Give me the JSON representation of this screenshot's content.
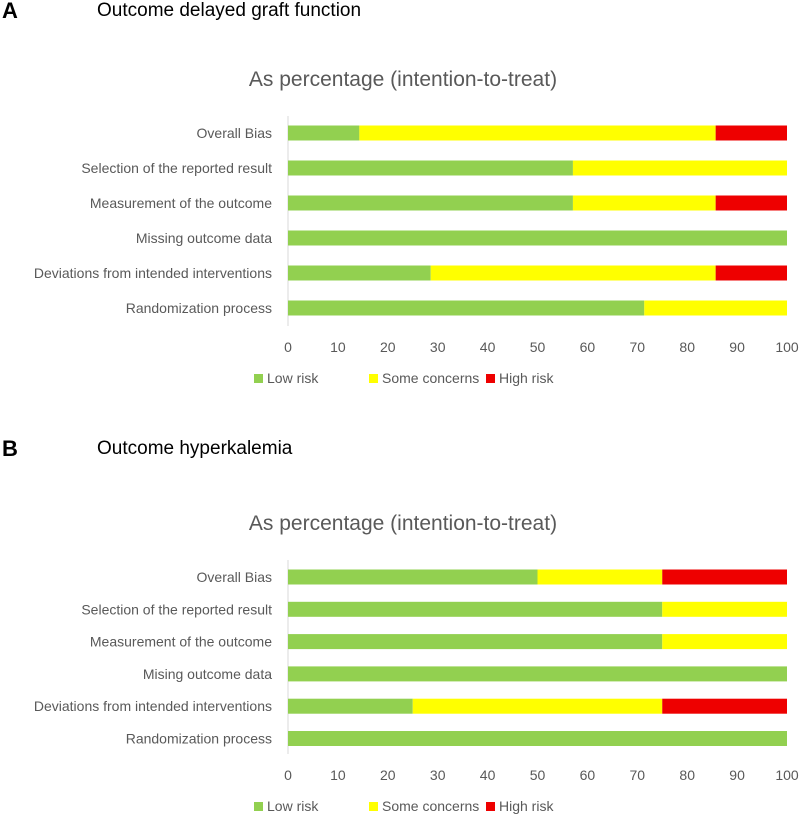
{
  "colors": {
    "low": "#92d050",
    "some": "#ffff00",
    "high": "#ee0000",
    "text": "#595959",
    "axis": "#d9d9d9"
  },
  "chart_data": [
    {
      "type": "bar",
      "orientation": "horizontal-stacked",
      "panel_label": "A",
      "panel_title": "Outcome delayed graft function",
      "title": "As percentage (intention-to-treat)",
      "categories": [
        "Overall Bias",
        "Selection of the reported result",
        "Measurement of the outcome",
        "Missing outcome data",
        "Deviations from intended interventions",
        "Randomization process"
      ],
      "series": [
        {
          "name": "Low risk",
          "color_key": "low",
          "values": [
            14.3,
            57.1,
            57.1,
            100,
            28.6,
            71.4
          ]
        },
        {
          "name": "Some concerns",
          "color_key": "some",
          "values": [
            71.4,
            42.9,
            28.6,
            0,
            57.1,
            28.6
          ]
        },
        {
          "name": "High risk",
          "color_key": "high",
          "values": [
            14.3,
            0,
            14.3,
            0,
            14.3,
            0
          ]
        }
      ],
      "xlim": [
        0,
        100
      ],
      "xticks": [
        "0",
        "10",
        "20",
        "30",
        "40",
        "50",
        "60",
        "70",
        "80",
        "90",
        "100"
      ],
      "legend": [
        "Low risk",
        "Some concerns",
        "High risk"
      ]
    },
    {
      "type": "bar",
      "orientation": "horizontal-stacked",
      "panel_label": "B",
      "panel_title": "Outcome hyperkalemia",
      "title": "As percentage (intention-to-treat)",
      "categories": [
        "Overall Bias",
        "Selection of the reported result",
        "Measurement of the outcome",
        "Mising outcome data",
        "Deviations from intended interventions",
        "Randomization process"
      ],
      "series": [
        {
          "name": "Low risk",
          "color_key": "low",
          "values": [
            50,
            75,
            75,
            100,
            25,
            100
          ]
        },
        {
          "name": "Some concerns",
          "color_key": "some",
          "values": [
            25,
            25,
            25,
            0,
            50,
            0
          ]
        },
        {
          "name": "High risk",
          "color_key": "high",
          "values": [
            25,
            0,
            0,
            0,
            25,
            0
          ]
        }
      ],
      "xlim": [
        0,
        100
      ],
      "xticks": [
        "0",
        "10",
        "20",
        "30",
        "40",
        "50",
        "60",
        "70",
        "80",
        "90",
        "100"
      ],
      "legend": [
        "Low risk",
        "Some concerns",
        "High risk"
      ]
    }
  ]
}
